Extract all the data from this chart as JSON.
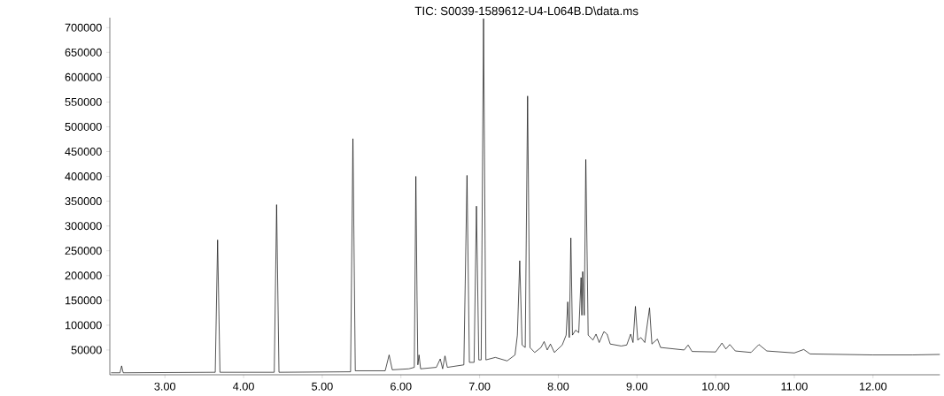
{
  "chart_data": {
    "type": "line",
    "title": "TIC: S0039-1589612-U4-L064B.D\\data.ms",
    "x": [
      2.32,
      2.43,
      2.45,
      2.47,
      3.64,
      3.67,
      3.7,
      4.39,
      4.42,
      4.45,
      5.36,
      5.39,
      5.42,
      5.8,
      5.85,
      5.89,
      6.1,
      6.17,
      6.19,
      6.205,
      6.215,
      6.23,
      6.25,
      6.45,
      6.5,
      6.53,
      6.56,
      6.59,
      6.8,
      6.84,
      6.87,
      6.93,
      6.96,
      6.99,
      7.02,
      7.05,
      7.08,
      7.2,
      7.35,
      7.45,
      7.48,
      7.51,
      7.54,
      7.58,
      7.61,
      7.64,
      7.7,
      7.78,
      7.82,
      7.86,
      7.9,
      7.95,
      8.05,
      8.1,
      8.12,
      8.14,
      8.16,
      8.18,
      8.22,
      8.26,
      8.29,
      8.3,
      8.31,
      8.33,
      8.35,
      8.38,
      8.44,
      8.48,
      8.52,
      8.58,
      8.62,
      8.66,
      8.8,
      8.87,
      8.92,
      8.95,
      8.98,
      9.01,
      9.05,
      9.1,
      9.16,
      9.19,
      9.26,
      9.3,
      9.6,
      9.65,
      9.7,
      10.0,
      10.08,
      10.13,
      10.18,
      10.25,
      10.45,
      10.55,
      10.65,
      11.0,
      11.12,
      11.2,
      12.0,
      12.5,
      12.85
    ],
    "series": [
      {
        "color": "#000000",
        "values": [
          4000,
          4000,
          18000,
          4000,
          5000,
          272000,
          5000,
          5000,
          343000,
          5000,
          6000,
          476000,
          8000,
          8000,
          40000,
          10000,
          12000,
          15000,
          400000,
          150000,
          20000,
          40000,
          12000,
          15000,
          32000,
          12000,
          38000,
          15000,
          20000,
          402000,
          25000,
          25000,
          340000,
          30000,
          30000,
          718000,
          30000,
          35000,
          28000,
          40000,
          80000,
          230000,
          60000,
          55000,
          562000,
          55000,
          45000,
          55000,
          67000,
          50000,
          62000,
          45000,
          60000,
          80000,
          147000,
          75000,
          276000,
          80000,
          90000,
          85000,
          196000,
          120000,
          208000,
          120000,
          434000,
          80000,
          70000,
          82000,
          65000,
          87000,
          82000,
          62000,
          58000,
          60000,
          82000,
          65000,
          138000,
          70000,
          75000,
          65000,
          135000,
          62000,
          72000,
          55000,
          50000,
          60000,
          47000,
          46000,
          64000,
          52000,
          61000,
          48000,
          45000,
          61000,
          48000,
          44000,
          51000,
          42000,
          40000,
          40000,
          41000
        ]
      }
    ],
    "xlim": [
      2.3,
      12.85
    ],
    "ylim": [
      0,
      720000
    ],
    "xticks": [
      {
        "value": 3,
        "label": "3.00"
      },
      {
        "value": 4,
        "label": "4.00"
      },
      {
        "value": 5,
        "label": "5.00"
      },
      {
        "value": 6,
        "label": "6.00"
      },
      {
        "value": 7,
        "label": "7.00"
      },
      {
        "value": 8,
        "label": "8.00"
      },
      {
        "value": 9,
        "label": "9.00"
      },
      {
        "value": 10,
        "label": "10.00"
      },
      {
        "value": 11,
        "label": "11.00"
      },
      {
        "value": 12,
        "label": "12.00"
      }
    ],
    "yticks": [
      50000,
      100000,
      150000,
      200000,
      250000,
      300000,
      350000,
      400000,
      450000,
      500000,
      550000,
      600000,
      650000,
      700000
    ],
    "grid": false,
    "marker": "none",
    "line_style": "solid"
  }
}
